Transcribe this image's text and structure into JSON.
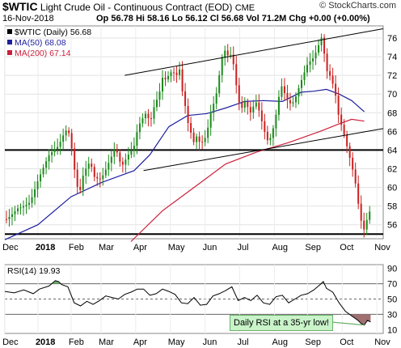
{
  "header": {
    "symbol": "$WTIC",
    "name": "Light Crude Oil - Continuous Contract (EOD)",
    "exchange": "CME",
    "date": "16-Nov-2018",
    "open_label": "Op",
    "open": "56.78",
    "high_label": "Hi",
    "high": "58.16",
    "low_label": "Lo",
    "low": "56.12",
    "close_label": "Cl",
    "close": "56.68",
    "vol_label": "Vol",
    "vol": "71.2M",
    "chg_label": "Chg",
    "chg": "+0.00 (+0.00%)",
    "brand": "© StockCharts.com"
  },
  "chart_data": [
    {
      "type": "candlestick",
      "legend": [
        {
          "label": "$WTIC (Daily) 56.68",
          "color": "#000000"
        },
        {
          "label": "MA(50) 68.08",
          "color": "#1f1f9f"
        },
        {
          "label": "MA(200) 67.14",
          "color": "#cc1f3a"
        }
      ],
      "ylim": [
        54.5,
        77.3
      ],
      "y_ticks": [
        56,
        58,
        60,
        62,
        64,
        66,
        68,
        70,
        72,
        74,
        76
      ],
      "x_ticks": [
        "Dec",
        "2018",
        "Feb",
        "Mar",
        "Apr",
        "May",
        "Jun",
        "Jul",
        "Aug",
        "Sep",
        "Oct",
        "Nov"
      ],
      "x_tick_pos": [
        0.02,
        10.5,
        21,
        30.5,
        41.5,
        52.5,
        63.5,
        74.5,
        85.5,
        96,
        107,
        118
      ],
      "price_path": [
        [
          0,
          56.6
        ],
        [
          4,
          58.2
        ],
        [
          8,
          58.5
        ],
        [
          10.5,
          60.5
        ],
        [
          14,
          63
        ],
        [
          17,
          64.2
        ],
        [
          19,
          66
        ],
        [
          20,
          66.5
        ],
        [
          21,
          65
        ],
        [
          22,
          62.5
        ],
        [
          23.5,
          59.5
        ],
        [
          25,
          62
        ],
        [
          27,
          63
        ],
        [
          28.5,
          61
        ],
        [
          30.5,
          60.6
        ],
        [
          32,
          61.5
        ],
        [
          34,
          63
        ],
        [
          35,
          64
        ],
        [
          37,
          62
        ],
        [
          39,
          63.5
        ],
        [
          41,
          64.8
        ],
        [
          42,
          66.5
        ],
        [
          43,
          67.5
        ],
        [
          45,
          68.5
        ],
        [
          46,
          67
        ],
        [
          47,
          68.5
        ],
        [
          49,
          70
        ],
        [
          50,
          71.5
        ],
        [
          51,
          71.2
        ],
        [
          53,
          72
        ],
        [
          55,
          71.5
        ],
        [
          55.5,
          72.5
        ],
        [
          56,
          70.5
        ],
        [
          57,
          69
        ],
        [
          58,
          67
        ],
        [
          59,
          66
        ],
        [
          60,
          65
        ],
        [
          61,
          66
        ],
        [
          62,
          65
        ],
        [
          63,
          65.5
        ],
        [
          64,
          66
        ],
        [
          65,
          68
        ],
        [
          66,
          69
        ],
        [
          67,
          70
        ],
        [
          68,
          72
        ],
        [
          69,
          74
        ],
        [
          70,
          74.5
        ],
        [
          71,
          73.5
        ],
        [
          72,
          74
        ],
        [
          73,
          71.5
        ],
        [
          74,
          69
        ],
        [
          75,
          68
        ],
        [
          76,
          69
        ],
        [
          77,
          68.5
        ],
        [
          78,
          68
        ],
        [
          79,
          69
        ],
        [
          80,
          69.5
        ],
        [
          81,
          68
        ],
        [
          82,
          67
        ],
        [
          83,
          65.5
        ],
        [
          84,
          65.5
        ],
        [
          85,
          66.5
        ],
        [
          86,
          68
        ],
        [
          86.5,
          69
        ],
        [
          87,
          70
        ],
        [
          88,
          71
        ],
        [
          89,
          69.5
        ],
        [
          90,
          68.8
        ],
        [
          91,
          68.5
        ],
        [
          92,
          69
        ],
        [
          93,
          70
        ],
        [
          94,
          71
        ],
        [
          95,
          72
        ],
        [
          96,
          73
        ],
        [
          97,
          73.5
        ],
        [
          98,
          74
        ],
        [
          99,
          75
        ],
        [
          100,
          76
        ],
        [
          100.5,
          76.5
        ],
        [
          101,
          75.5
        ],
        [
          102,
          73
        ],
        [
          103,
          72.5
        ],
        [
          104,
          71.5
        ],
        [
          105,
          70
        ],
        [
          106,
          67.5
        ],
        [
          107,
          66.5
        ],
        [
          108,
          65
        ],
        [
          109,
          63.5
        ],
        [
          110,
          62
        ],
        [
          111,
          60.5
        ],
        [
          112,
          58
        ],
        [
          113,
          56
        ],
        [
          113.5,
          55.5
        ],
        [
          114,
          55
        ],
        [
          115,
          56.5
        ],
        [
          116,
          57.5
        ]
      ],
      "ma50_path": [
        [
          0,
          54.4
        ],
        [
          10.5,
          56
        ],
        [
          21,
          59
        ],
        [
          30.5,
          60.5
        ],
        [
          41,
          61.8
        ],
        [
          46,
          63.5
        ],
        [
          52,
          66.5
        ],
        [
          58,
          67.7
        ],
        [
          64,
          67.9
        ],
        [
          70,
          68.5
        ],
        [
          76,
          69.2
        ],
        [
          82,
          69.3
        ],
        [
          88,
          69.2
        ],
        [
          94,
          70.2
        ],
        [
          98,
          70.3
        ],
        [
          102,
          70.5
        ],
        [
          106,
          70
        ],
        [
          110,
          69.3
        ],
        [
          114,
          68.1
        ]
      ],
      "ma200_path": [
        [
          40,
          54.2
        ],
        [
          50,
          57.5
        ],
        [
          60,
          60
        ],
        [
          70,
          62.5
        ],
        [
          80,
          63.8
        ],
        [
          90,
          64.8
        ],
        [
          100,
          66
        ],
        [
          106,
          66.8
        ],
        [
          110,
          67.3
        ],
        [
          114,
          67.1
        ]
      ],
      "trendlines": [
        {
          "from": [
            38,
            72
          ],
          "to": [
            120,
            77
          ]
        },
        {
          "from": [
            44,
            61.8
          ],
          "to": [
            120,
            66.3
          ]
        }
      ],
      "hlines": [
        64,
        55
      ]
    },
    {
      "type": "line",
      "legend": [
        {
          "label": "RSI(14) 19.93",
          "color": "#000000"
        }
      ],
      "ylim": [
        5,
        95
      ],
      "y_ticks": [
        10,
        30,
        50,
        70,
        90
      ],
      "levels": [
        70,
        50,
        30
      ],
      "x_ticks": [
        "Dec",
        "2018",
        "Feb",
        "Mar",
        "Apr",
        "May",
        "Jun",
        "Jul",
        "Aug",
        "Sep",
        "Oct",
        "Nov"
      ],
      "x_tick_pos": [
        0.02,
        10.5,
        21,
        30.5,
        41.5,
        52.5,
        63.5,
        74.5,
        85.5,
        96,
        107,
        118
      ],
      "rsi_path": [
        [
          0,
          60
        ],
        [
          3,
          58
        ],
        [
          6,
          62
        ],
        [
          9,
          57
        ],
        [
          11,
          63
        ],
        [
          14,
          67
        ],
        [
          16,
          74
        ],
        [
          17,
          73
        ],
        [
          18,
          69
        ],
        [
          20,
          66
        ],
        [
          22,
          45
        ],
        [
          24,
          41
        ],
        [
          26,
          47
        ],
        [
          28,
          43
        ],
        [
          30,
          48
        ],
        [
          32,
          54
        ],
        [
          34,
          52
        ],
        [
          36,
          50
        ],
        [
          38,
          56
        ],
        [
          40,
          59
        ],
        [
          42,
          63
        ],
        [
          44,
          63
        ],
        [
          46,
          55
        ],
        [
          48,
          57
        ],
        [
          50,
          63
        ],
        [
          52,
          60
        ],
        [
          54,
          56
        ],
        [
          56,
          45
        ],
        [
          58,
          44
        ],
        [
          60,
          52
        ],
        [
          62,
          42
        ],
        [
          64,
          43
        ],
        [
          66,
          54
        ],
        [
          68,
          57
        ],
        [
          70,
          61
        ],
        [
          72,
          66
        ],
        [
          74,
          48
        ],
        [
          76,
          52
        ],
        [
          78,
          48
        ],
        [
          80,
          55
        ],
        [
          82,
          45
        ],
        [
          84,
          43
        ],
        [
          86,
          53
        ],
        [
          88,
          55
        ],
        [
          90,
          45
        ],
        [
          92,
          50
        ],
        [
          94,
          55
        ],
        [
          96,
          57
        ],
        [
          98,
          62
        ],
        [
          100,
          69
        ],
        [
          101,
          73
        ],
        [
          102,
          64
        ],
        [
          104,
          59
        ],
        [
          106,
          45
        ],
        [
          108,
          34
        ],
        [
          110,
          28
        ],
        [
          112,
          22
        ],
        [
          113,
          18
        ],
        [
          114,
          16
        ],
        [
          115,
          22
        ],
        [
          116,
          20
        ]
      ],
      "annotation": "Daily RSI at a 35-yr low!"
    }
  ]
}
